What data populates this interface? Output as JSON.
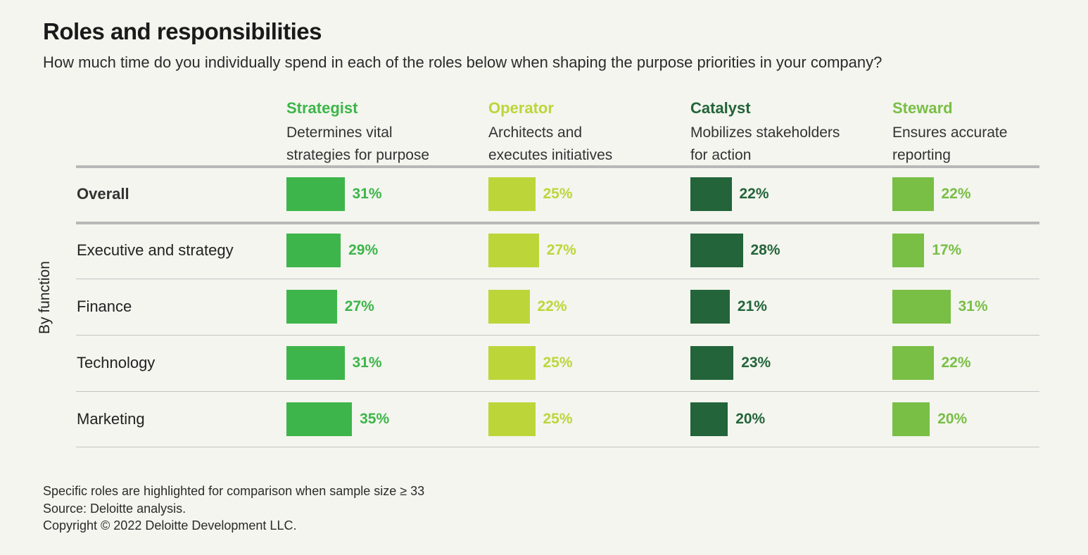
{
  "title": "Roles and responsibilities",
  "subtitle": "How much time do you individually spend in each of the roles below when shaping the purpose priorities in your company?",
  "axis_label": "By function",
  "footer": {
    "line1": "Specific roles are highlighted for comparison when sample size ≥ 33",
    "line2": "Source: Deloitte analysis.",
    "line3": "Copyright © 2022 Deloitte Development LLC."
  },
  "colors": {
    "Strategist": "#3db54a",
    "Operator": "#bcd63a",
    "Catalyst": "#23643a",
    "Steward": "#79be45"
  },
  "chart_data": {
    "type": "bar",
    "title": "Roles and responsibilities",
    "value_suffix": "%",
    "columns": [
      {
        "name": "Strategist",
        "desc": [
          "Determines vital",
          "strategies for purpose"
        ]
      },
      {
        "name": "Operator",
        "desc": [
          "Architects and",
          "executes initiatives"
        ]
      },
      {
        "name": "Catalyst",
        "desc": [
          "Mobilizes stakeholders",
          "for action"
        ]
      },
      {
        "name": "Steward",
        "desc": [
          "Ensures accurate",
          "reporting"
        ]
      }
    ],
    "rows": [
      {
        "label": "Overall",
        "values": [
          31,
          25,
          22,
          22
        ]
      },
      {
        "label": "Executive and strategy",
        "values": [
          29,
          27,
          28,
          17
        ]
      },
      {
        "label": "Finance",
        "values": [
          27,
          22,
          21,
          31
        ]
      },
      {
        "label": "Technology",
        "values": [
          31,
          25,
          23,
          22
        ]
      },
      {
        "label": "Marketing",
        "values": [
          35,
          25,
          20,
          20
        ]
      }
    ]
  }
}
